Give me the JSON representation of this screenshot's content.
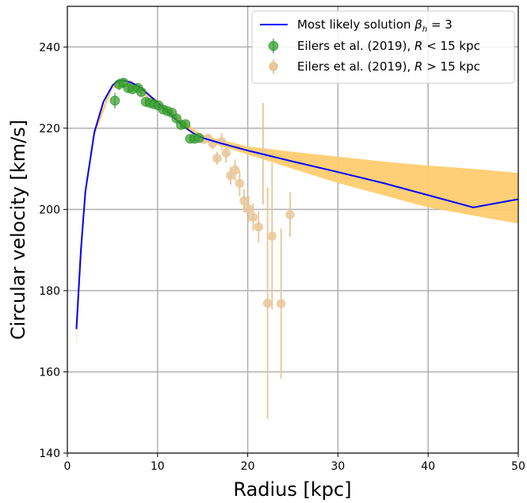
{
  "chart_data": {
    "type": "scatter",
    "xlabel": "Radius [kpc]",
    "ylabel": "Circular velocity [km/s]",
    "xlim": [
      0,
      50
    ],
    "ylim": [
      140,
      250
    ],
    "xticks": [
      "0",
      "10",
      "20",
      "30",
      "40",
      "50"
    ],
    "yticks": [
      "140",
      "160",
      "180",
      "200",
      "220",
      "240"
    ],
    "grid": true,
    "legend_position": "top-right",
    "legend_entries": [
      "Most likely solution βh = 3",
      "Eilers et al. (2019), R < 15 kpc",
      "Eilers et al.  (2019), R > 15 kpc"
    ],
    "colors": {
      "model_line": "#0000ff",
      "band": "#ffcc70",
      "inner_data": "#33a02c",
      "outer_data": "#e8c79a"
    },
    "series": [
      {
        "name": "Most likely solution βh = 3",
        "kind": "line",
        "x": [
          1,
          1.5,
          2,
          3,
          4,
          5,
          5.5,
          6,
          6.5,
          7,
          7.5,
          8,
          9,
          10,
          11,
          12,
          13,
          14,
          15,
          17,
          20,
          25,
          30,
          35,
          40,
          45,
          50
        ],
        "y": [
          170.5,
          190,
          204.5,
          219,
          226.5,
          230.5,
          231.5,
          231.8,
          231.6,
          231.3,
          230.8,
          230.2,
          228.3,
          226.3,
          224.3,
          222.2,
          220.3,
          218.7,
          217.6,
          216.3,
          214.5,
          211.8,
          209.2,
          206.5,
          203.5,
          200.5,
          202.5
        ]
      },
      {
        "name": "Model uncertainty band",
        "kind": "band",
        "x": [
          1,
          2,
          3,
          5,
          7,
          10,
          15,
          20,
          25,
          30,
          35,
          40,
          45,
          50
        ],
        "upper": [
          168.5,
          205.5,
          220,
          231,
          231.8,
          226.8,
          218.2,
          215.5,
          214.2,
          213,
          211.8,
          210.8,
          210,
          209
        ],
        "lower": [
          166.8,
          203.5,
          218,
          229.8,
          230.5,
          225.8,
          217,
          213.5,
          210,
          206.5,
          203.5,
          200.5,
          198.5,
          196.5
        ]
      },
      {
        "name": "Eilers et al. (2019), R < 15 kpc",
        "kind": "errorbar",
        "x": [
          5.27,
          5.74,
          6.23,
          6.73,
          7.22,
          7.82,
          8.19,
          8.7,
          9.14,
          9.62,
          10.11,
          10.61,
          11.1,
          11.6,
          12.1,
          12.6,
          13.1,
          13.61,
          14.1,
          14.6
        ],
        "y": [
          226.8,
          230.8,
          231.2,
          229.9,
          229.6,
          229.9,
          228.9,
          226.5,
          226.2,
          225.9,
          225.6,
          224.6,
          224.2,
          223.8,
          222.4,
          220.8,
          221.0,
          217.4,
          217.4,
          217.6
        ],
        "err": [
          1.9,
          1.4,
          1.1,
          1.0,
          0.9,
          0.8,
          0.8,
          0.8,
          0.8,
          0.8,
          0.8,
          0.8,
          0.8,
          0.8,
          0.8,
          0.8,
          0.8,
          0.8,
          0.8,
          0.8
        ]
      },
      {
        "name": "Eilers et al.  (2019), R > 15 kpc",
        "kind": "errorbar",
        "x": [
          15.1,
          15.6,
          16.1,
          16.6,
          17.1,
          17.6,
          18.1,
          18.6,
          19.1,
          19.6,
          20.1,
          20.6,
          21.2,
          21.7,
          22.2,
          22.7,
          23.7,
          24.7
        ],
        "y": [
          217.2,
          217.5,
          216.2,
          212.6,
          216.7,
          213.9,
          208.3,
          209.7,
          206.4,
          202.1,
          200.1,
          198.1,
          195.7,
          213.7,
          176.9,
          193.4,
          176.8,
          198.7
        ],
        "err": [
          0.9,
          1.1,
          1.4,
          1.6,
          2.1,
          2.4,
          2.2,
          2.6,
          3.1,
          2.9,
          3.2,
          3.4,
          3.9,
          12.5,
          28.5,
          18.0,
          18.5,
          5.5
        ]
      }
    ]
  }
}
